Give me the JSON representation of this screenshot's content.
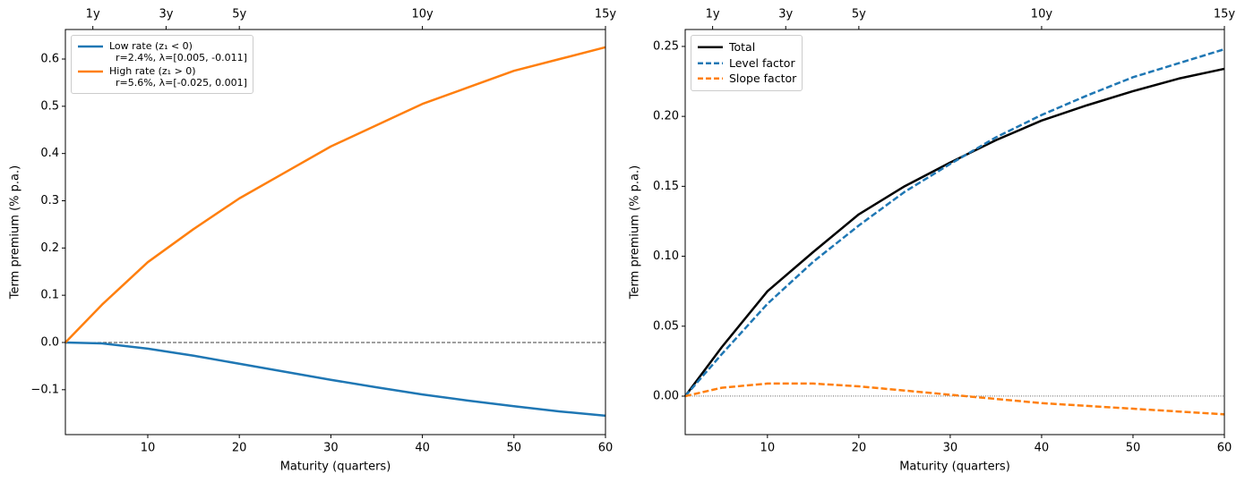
{
  "chart_data": [
    {
      "type": "line",
      "xlabel": "Maturity (quarters)",
      "ylabel": "Term premium (% p.a.)",
      "x": [
        1,
        5,
        10,
        15,
        20,
        25,
        30,
        35,
        40,
        45,
        50,
        55,
        60
      ],
      "series": [
        {
          "name": "Low rate (z₁ < 0)\n  r=2.4%, λ=[0.005, -0.011]",
          "color": "#1f77b4",
          "dash": false,
          "values": [
            0,
            -0.002,
            -0.013,
            -0.028,
            -0.045,
            -0.062,
            -0.079,
            -0.095,
            -0.11,
            -0.123,
            -0.135,
            -0.146,
            -0.155
          ]
        },
        {
          "name": "High rate (z₁ > 0)\n  r=5.6%, λ=[-0.025, 0.001]",
          "color": "#ff7f0e",
          "dash": false,
          "values": [
            0,
            0.08,
            0.17,
            0.24,
            0.305,
            0.36,
            0.415,
            0.46,
            0.505,
            0.54,
            0.575,
            0.6,
            0.625
          ]
        }
      ],
      "xlim": [
        1,
        60
      ],
      "xticks": [
        10,
        20,
        30,
        40,
        50,
        60
      ],
      "ylim": [
        -0.195,
        0.6625
      ],
      "yticks": [
        {
          "value": -0.1,
          "label": "−0.1"
        },
        {
          "value": 0,
          "label": "0.0"
        },
        0.1,
        0.2,
        0.3,
        0.4,
        0.5,
        0.6
      ],
      "secondary_xticks": [
        {
          "value": 4,
          "label": "1y"
        },
        {
          "value": 12,
          "label": "3y"
        },
        {
          "value": 20,
          "label": "5y"
        },
        {
          "value": 40,
          "label": "10y"
        },
        {
          "value": 60,
          "label": "15y"
        }
      ],
      "hline": 0,
      "hline_style": "dashed",
      "grid": false,
      "legend": "upper left"
    },
    {
      "type": "line",
      "xlabel": "Maturity (quarters)",
      "ylabel": "Term premium (% p.a.)",
      "x": [
        1,
        5,
        10,
        15,
        20,
        25,
        30,
        35,
        40,
        45,
        50,
        55,
        60
      ],
      "series": [
        {
          "name": "Total",
          "color": "#000000",
          "dash": false,
          "values": [
            0,
            0.035,
            0.075,
            0.103,
            0.13,
            0.15,
            0.167,
            0.183,
            0.197,
            0.208,
            0.218,
            0.227,
            0.234
          ]
        },
        {
          "name": "Level factor",
          "color": "#1f77b4",
          "dash": true,
          "values": [
            0,
            0.03,
            0.066,
            0.096,
            0.122,
            0.146,
            0.166,
            0.185,
            0.201,
            0.215,
            0.228,
            0.238,
            0.248
          ]
        },
        {
          "name": "Slope factor",
          "color": "#ff7f0e",
          "dash": true,
          "values": [
            0,
            0.006,
            0.009,
            0.009,
            0.007,
            0.004,
            0.001,
            -0.002,
            -0.005,
            -0.007,
            -0.009,
            -0.011,
            -0.013
          ]
        }
      ],
      "xlim": [
        1,
        60
      ],
      "xticks": [
        10,
        20,
        30,
        40,
        50,
        60
      ],
      "ylim": [
        -0.0275,
        0.2621
      ],
      "yticks": [
        {
          "value": 0,
          "label": "0.00"
        },
        {
          "value": 0.05,
          "label": "0.05"
        },
        {
          "value": 0.1,
          "label": "0.10"
        },
        {
          "value": 0.15,
          "label": "0.15"
        },
        {
          "value": 0.2,
          "label": "0.20"
        },
        {
          "value": 0.25,
          "label": "0.25"
        }
      ],
      "secondary_xticks": [
        {
          "value": 4,
          "label": "1y"
        },
        {
          "value": 12,
          "label": "3y"
        },
        {
          "value": 20,
          "label": "5y"
        },
        {
          "value": 40,
          "label": "10y"
        },
        {
          "value": 60,
          "label": "15y"
        }
      ],
      "hline": 0,
      "hline_style": "dotted",
      "grid": false,
      "legend": "upper left"
    }
  ]
}
